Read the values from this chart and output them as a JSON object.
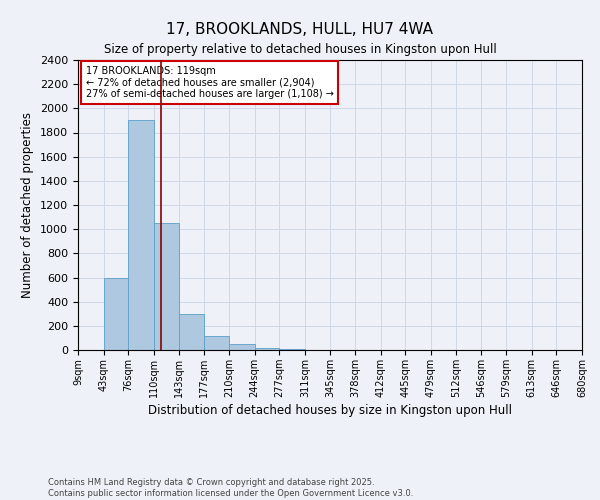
{
  "title": "17, BROOKLANDS, HULL, HU7 4WA",
  "subtitle": "Size of property relative to detached houses in Kingston upon Hull",
  "xlabel": "Distribution of detached houses by size in Kingston upon Hull",
  "ylabel": "Number of detached properties",
  "footer_line1": "Contains HM Land Registry data © Crown copyright and database right 2025.",
  "footer_line2": "Contains public sector information licensed under the Open Government Licence v3.0.",
  "bin_labels": [
    "9sqm",
    "43sqm",
    "76sqm",
    "110sqm",
    "143sqm",
    "177sqm",
    "210sqm",
    "244sqm",
    "277sqm",
    "311sqm",
    "345sqm",
    "378sqm",
    "412sqm",
    "445sqm",
    "479sqm",
    "512sqm",
    "546sqm",
    "579sqm",
    "613sqm",
    "646sqm",
    "680sqm"
  ],
  "bin_edges": [
    9,
    43,
    76,
    110,
    143,
    177,
    210,
    244,
    277,
    311,
    345,
    378,
    412,
    445,
    479,
    512,
    546,
    579,
    613,
    646,
    680
  ],
  "bar_heights": [
    0,
    600,
    1900,
    1050,
    300,
    120,
    50,
    20,
    10,
    0,
    0,
    0,
    0,
    0,
    0,
    0,
    0,
    0,
    0,
    0
  ],
  "bar_color": "#aec8e0",
  "bar_edge_color": "#5a9ec9",
  "grid_color": "#cdd8e8",
  "background_color": "#eef2f8",
  "red_line_x": 119,
  "annotation_text_line1": "17 BROOKLANDS: 119sqm",
  "annotation_text_line2": "← 72% of detached houses are smaller (2,904)",
  "annotation_text_line3": "27% of semi-detached houses are larger (1,108) →",
  "annotation_box_color": "#ffffff",
  "annotation_border_color": "#cc0000",
  "ylim": [
    0,
    2400
  ],
  "yticks": [
    0,
    200,
    400,
    600,
    800,
    1000,
    1200,
    1400,
    1600,
    1800,
    2000,
    2200,
    2400
  ]
}
